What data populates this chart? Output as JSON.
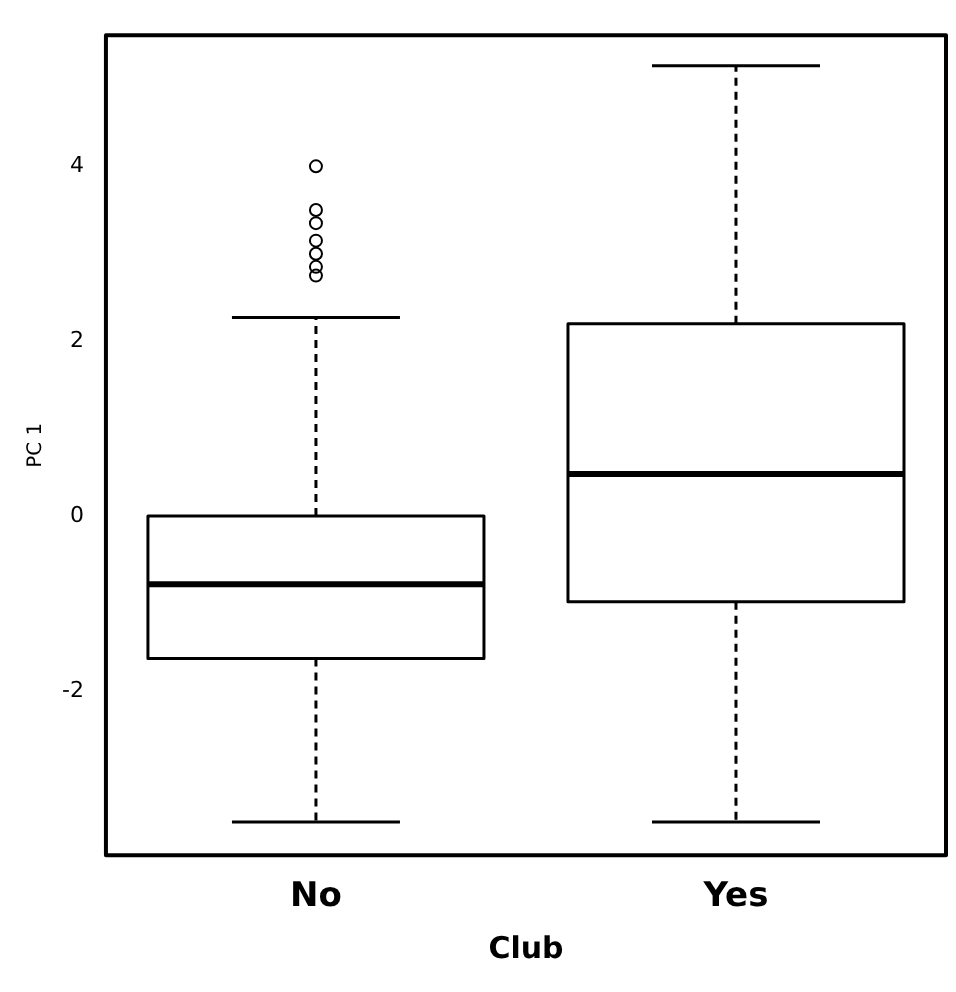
{
  "chart_data": {
    "type": "box",
    "xlabel": "Club",
    "ylabel": "PC 1",
    "categories": [
      "No",
      "Yes"
    ],
    "boxes": [
      {
        "low": -3.5,
        "q1": -1.63,
        "median": -0.78,
        "q3": 0,
        "high": 2.27,
        "outliers": [
          4.0,
          3.5,
          3.35,
          3.15,
          3.0,
          2.85,
          2.75
        ]
      },
      {
        "low": -3.5,
        "q1": -0.98,
        "median": 0.48,
        "q3": 2.2,
        "high": 5.15
      }
    ],
    "ylim": [
      -3.88,
      5.5
    ],
    "yticks": [
      -2,
      0,
      2,
      4
    ],
    "grid": false,
    "legend": false,
    "marker": "circle",
    "line_style": "dashed"
  }
}
